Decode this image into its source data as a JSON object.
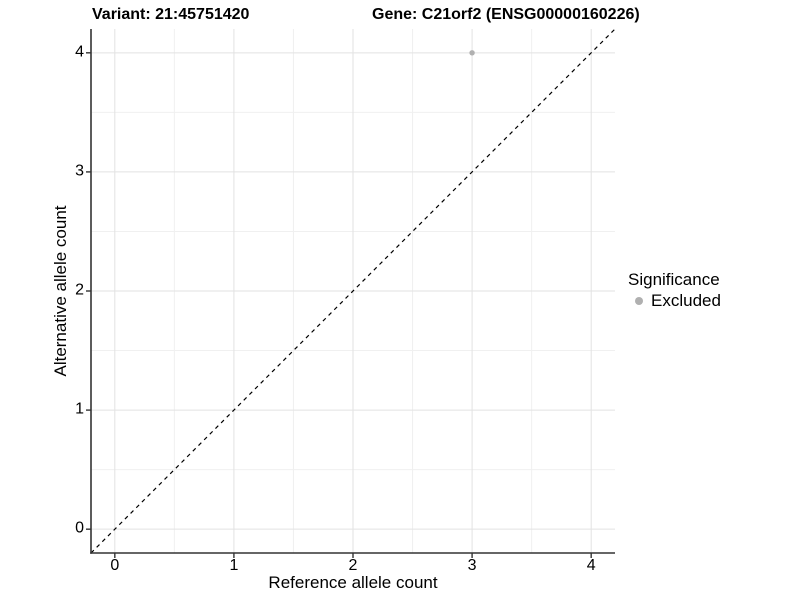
{
  "colors": {
    "background": "#ffffff",
    "grid_major": "#e2e2e2",
    "grid_minor": "#f0f0f0",
    "axis_line": "#333333",
    "tick_mark": "#333333",
    "diagonal_line": "#000000",
    "point": "#b0b0b0",
    "text": "#000000"
  },
  "chart_data": {
    "type": "scatter",
    "title_left": "Variant: 21:45751420",
    "title_right": "Gene: C21orf2 (ENSG00000160226)",
    "xlabel": "Reference allele count",
    "ylabel": "Alternative allele count",
    "xlim": [
      -0.2,
      4.2
    ],
    "ylim": [
      -0.2,
      4.2
    ],
    "x_ticks": [
      0,
      1,
      2,
      3,
      4
    ],
    "y_ticks": [
      0,
      1,
      2,
      3,
      4
    ],
    "x_minor": [
      0.5,
      1.5,
      2.5,
      3.5
    ],
    "y_minor": [
      0.5,
      1.5,
      2.5,
      3.5
    ],
    "grid": true,
    "points": [
      {
        "x": 3,
        "y": 4,
        "significance": "Excluded"
      }
    ],
    "reference_line": {
      "type": "identity",
      "from": [
        -0.2,
        -0.2
      ],
      "to": [
        4.2,
        4.2
      ],
      "style": "dashed"
    },
    "legend": {
      "title": "Significance",
      "position": "right",
      "items": [
        {
          "label": "Excluded",
          "color": "#b0b0b0"
        }
      ]
    }
  }
}
